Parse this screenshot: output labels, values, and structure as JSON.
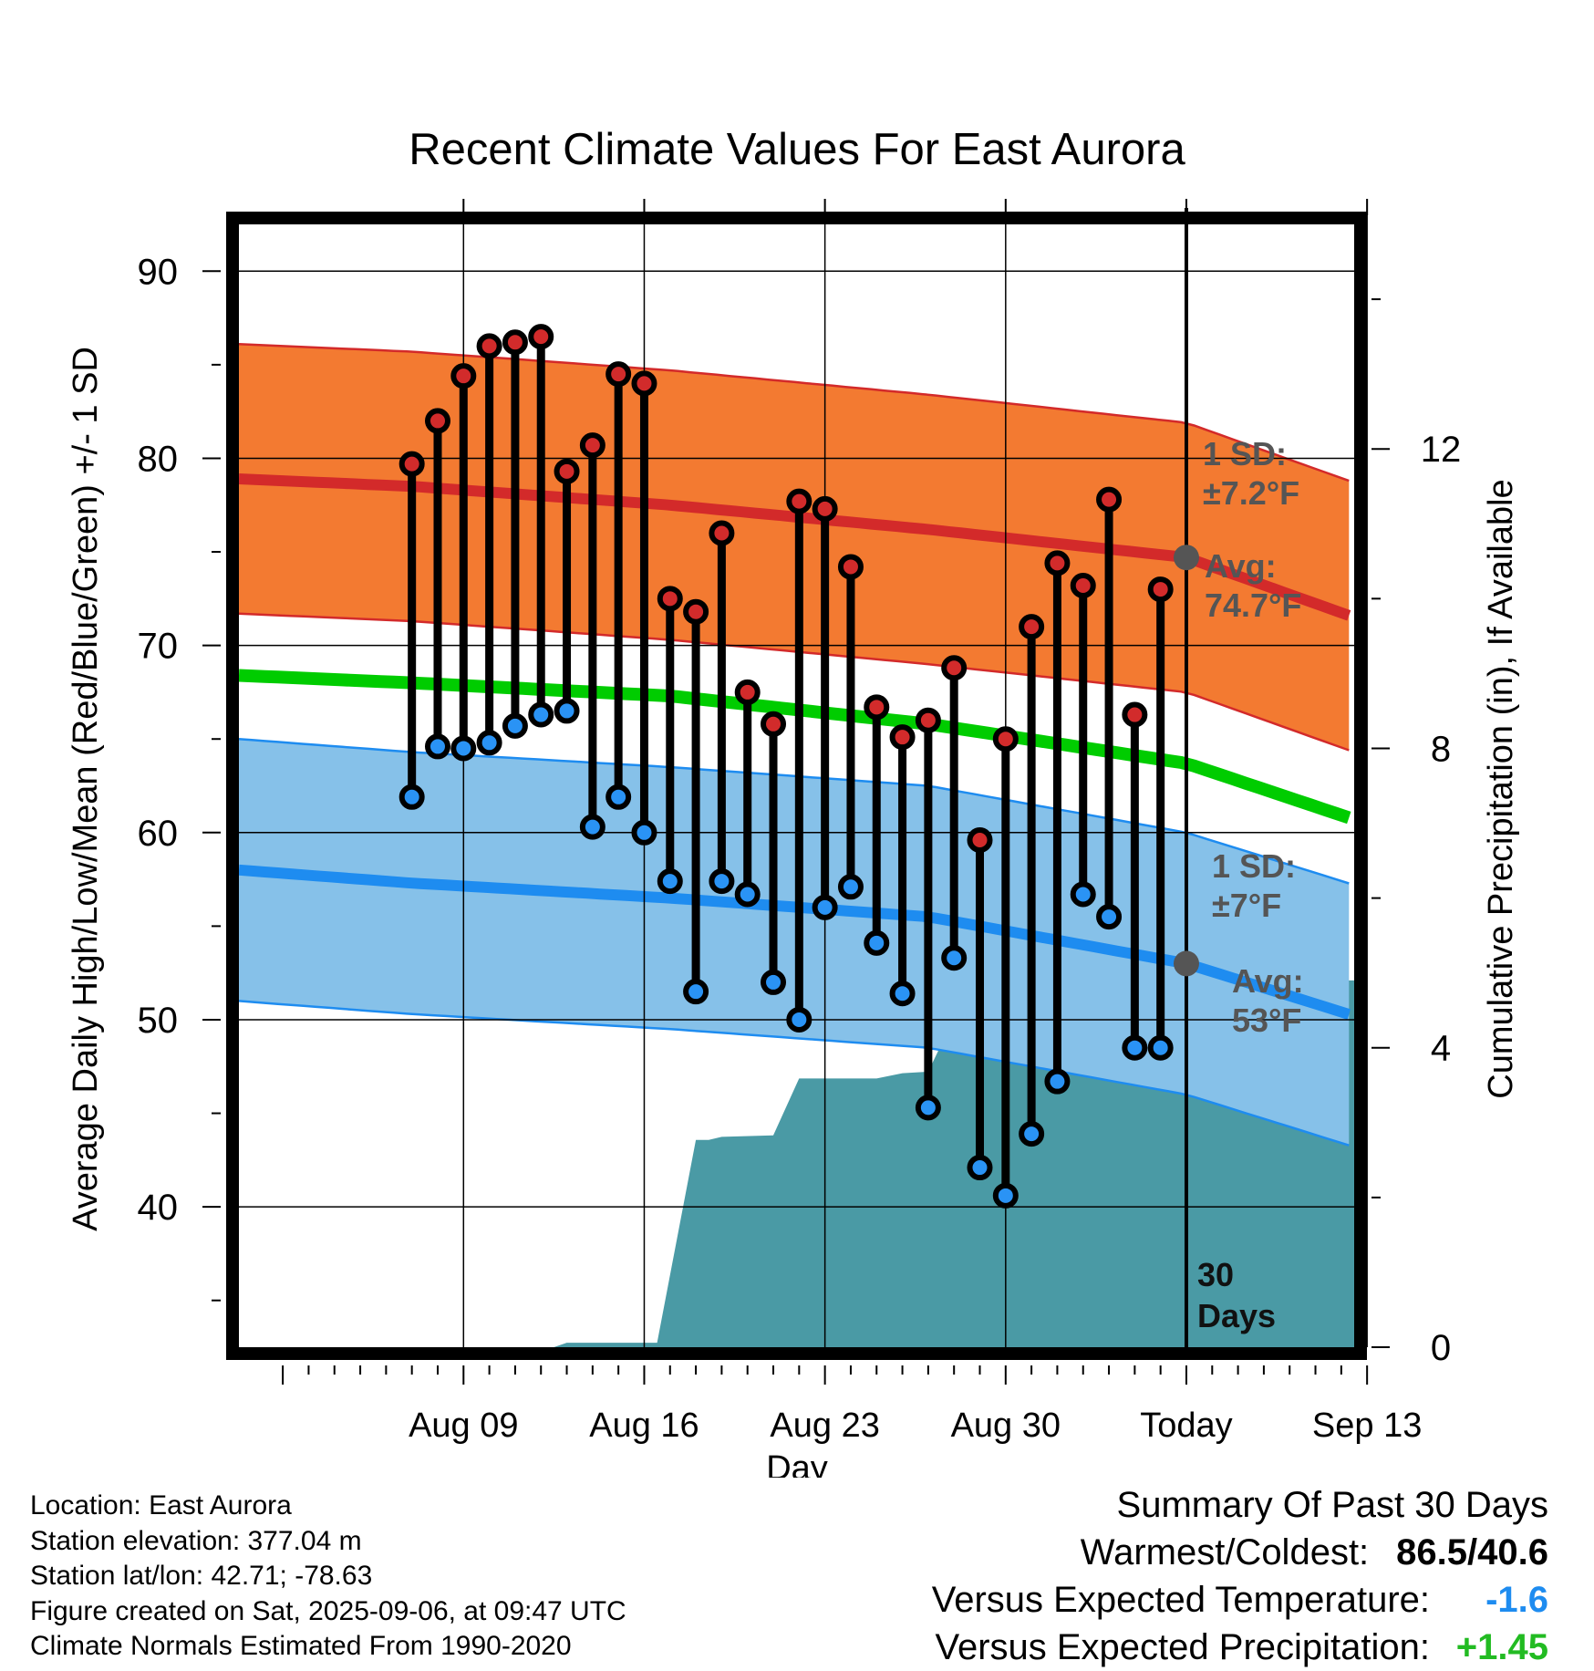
{
  "chart_data": {
    "type": "line",
    "title": "Recent Climate Values For East Aurora",
    "xlabel": "Day",
    "ylabel": "Average Daily High/Low/Mean (Red/Blue/Green) +/- 1 SD",
    "y2label": "Cumulative Precipitation (in), If Available",
    "ylim": [
      32.5,
      92.5
    ],
    "y2lim": [
      0,
      15
    ],
    "y_ticks": [
      "40",
      "50",
      "60",
      "70",
      "80",
      "90"
    ],
    "y2_ticks": [
      "0",
      "4",
      "8",
      "12"
    ],
    "x_tick_labels": [
      "Aug 09",
      "Aug 16",
      "Aug 23",
      "Aug 30",
      "Today",
      "Sep 13"
    ],
    "x_range_days": [
      -36.7,
      6.5
    ],
    "today_label_line1": "30",
    "today_label_line2": "Days",
    "daily_high": [
      79.7,
      82.0,
      84.4,
      86.0,
      86.2,
      86.5,
      79.3,
      80.7,
      84.5,
      84.0,
      72.5,
      71.8,
      76.0,
      67.5,
      65.8,
      77.7,
      77.3,
      74.2,
      66.7,
      65.1,
      66.0,
      68.8,
      59.6,
      65.0,
      71.0,
      74.4,
      73.2,
      77.8,
      66.3,
      73.0
    ],
    "daily_low": [
      61.9,
      64.6,
      64.5,
      64.8,
      65.7,
      66.3,
      66.5,
      60.3,
      61.9,
      60.0,
      57.4,
      51.5,
      57.4,
      56.7,
      52.0,
      50.0,
      56.0,
      57.1,
      54.1,
      51.4,
      45.3,
      53.3,
      42.1,
      40.6,
      43.9,
      46.7,
      56.7,
      55.5,
      48.5,
      48.5
    ],
    "normal_high": {
      "day_offsets": [
        -36.7,
        -30,
        -20,
        -10,
        0,
        6.5
      ],
      "avg": [
        78.9,
        78.5,
        77.5,
        76.2,
        74.7,
        71.5
      ],
      "sd": 7.2
    },
    "normal_low": {
      "day_offsets": [
        -36.7,
        -30,
        -20,
        -10,
        0,
        6.5
      ],
      "avg": [
        58.0,
        57.3,
        56.5,
        55.5,
        53.0,
        50.2
      ],
      "sd": 7.0
    },
    "normal_mean": {
      "day_offsets": [
        -36.7,
        -30,
        -20,
        -10,
        0,
        6.5
      ],
      "avg": [
        68.4,
        68.0,
        67.3,
        65.8,
        63.7,
        60.7
      ]
    },
    "cumulative_precip": {
      "day_offsets": [
        -36.7,
        -24.5,
        -24.0,
        -23.5,
        -21.0,
        -20.5,
        -19.0,
        -18.5,
        -18.0,
        -16.0,
        -15.0,
        -14.0,
        -12.0,
        -11.0,
        -10.0,
        -9.0,
        -8.0,
        -5.5,
        -4.0,
        -3.0,
        -2.0,
        6.5
      ],
      "values": [
        0.0,
        0.0,
        0.06,
        0.06,
        0.06,
        0.06,
        2.77,
        2.77,
        2.81,
        2.83,
        3.59,
        3.59,
        3.59,
        3.66,
        3.68,
        4.4,
        4.4,
        4.42,
        4.43,
        4.9,
        4.9,
        4.9
      ]
    },
    "annotations": {
      "high_sd_line1": "1 SD:",
      "high_sd_line2": "±7.2°F",
      "high_avg_line1": "Avg:",
      "high_avg_line2": "74.7°F",
      "low_sd_line1": "1 SD:",
      "low_sd_line2": "±7°F",
      "low_avg_line1": "Avg:",
      "low_avg_line2": "53°F"
    },
    "grid": true,
    "colors": {
      "high_band": "#f37a31",
      "high_line": "#d32a2a",
      "low_band": "#86c1e9",
      "low_line": "#1e8cf0",
      "mean_line": "#00cc00",
      "precip": "#4a9aa5",
      "marker_high": "#d22b2b",
      "marker_low": "#2a93f5",
      "annotation": "#555555"
    }
  },
  "meta": {
    "location": "Location: East Aurora",
    "elevation": "Station elevation: 377.04 m",
    "latlon": "Station lat/lon: 42.71; -78.63",
    "created": "Figure created on Sat, 2025-09-06, at 09:47 UTC",
    "normals": "Climate Normals Estimated From 1990-2020"
  },
  "summary": {
    "title": "Summary Of Past 30 Days",
    "warm_cold_label": "Warmest/Coldest:",
    "warm_cold_value": "86.5/40.6",
    "temp_label": "Versus Expected Temperature:",
    "temp_value": "-1.6",
    "temp_color": "#1e8cf0",
    "precip_label": "Versus Expected Precipitation:",
    "precip_value": "+1.45",
    "precip_color": "#22bb22"
  }
}
